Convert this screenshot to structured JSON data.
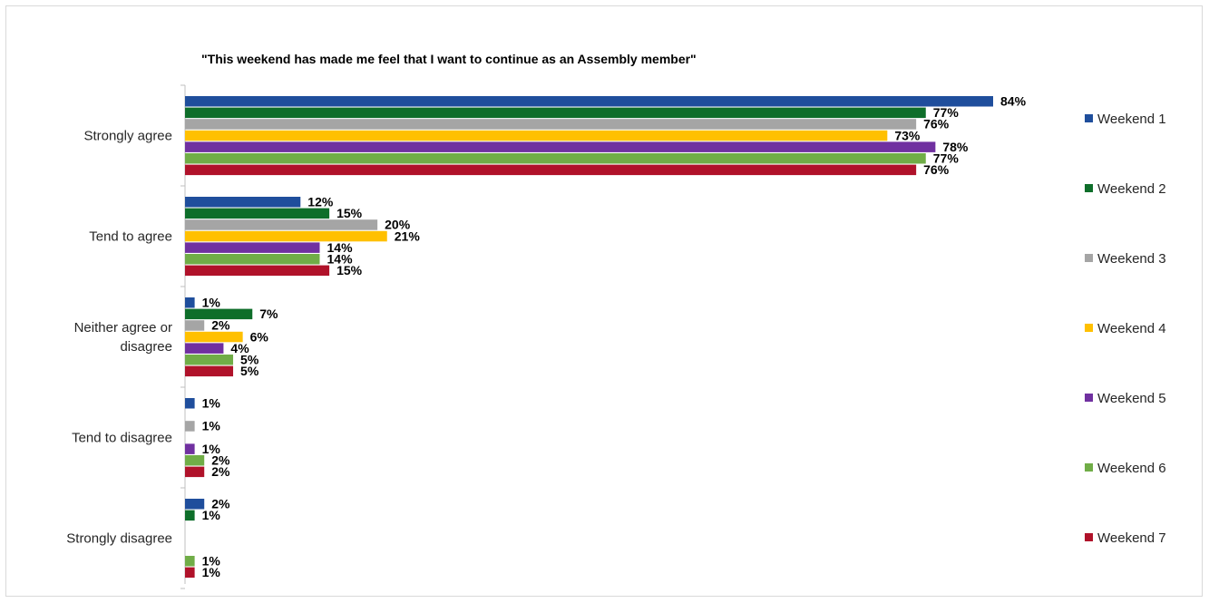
{
  "chart_data": {
    "type": "bar",
    "orientation": "horizontal",
    "title": "\"This weekend has made me feel that I want to continue as an Assembly member\"",
    "categories": [
      "Strongly agree",
      "Tend to agree",
      "Neither agree or disagree",
      "Tend to disagree",
      "Strongly disagree"
    ],
    "series": [
      {
        "name": "Weekend 1",
        "color": "#1f4e9c",
        "values": [
          84,
          12,
          1,
          1,
          2
        ]
      },
      {
        "name": "Weekend 2",
        "color": "#0e6e2a",
        "values": [
          77,
          15,
          7,
          null,
          1
        ]
      },
      {
        "name": "Weekend 3",
        "color": "#a5a5a5",
        "values": [
          76,
          20,
          2,
          1,
          null
        ]
      },
      {
        "name": "Weekend 4",
        "color": "#ffc000",
        "values": [
          73,
          21,
          6,
          null,
          null
        ]
      },
      {
        "name": "Weekend 5",
        "color": "#7030a0",
        "values": [
          78,
          14,
          4,
          1,
          null
        ]
      },
      {
        "name": "Weekend 6",
        "color": "#70ad47",
        "values": [
          77,
          14,
          5,
          2,
          1
        ]
      },
      {
        "name": "Weekend 7",
        "color": "#b0122a",
        "values": [
          76,
          15,
          5,
          2,
          1
        ]
      }
    ],
    "value_suffix": "%",
    "xlim": [
      0,
      84
    ],
    "grid": false,
    "legend_position": "right"
  }
}
